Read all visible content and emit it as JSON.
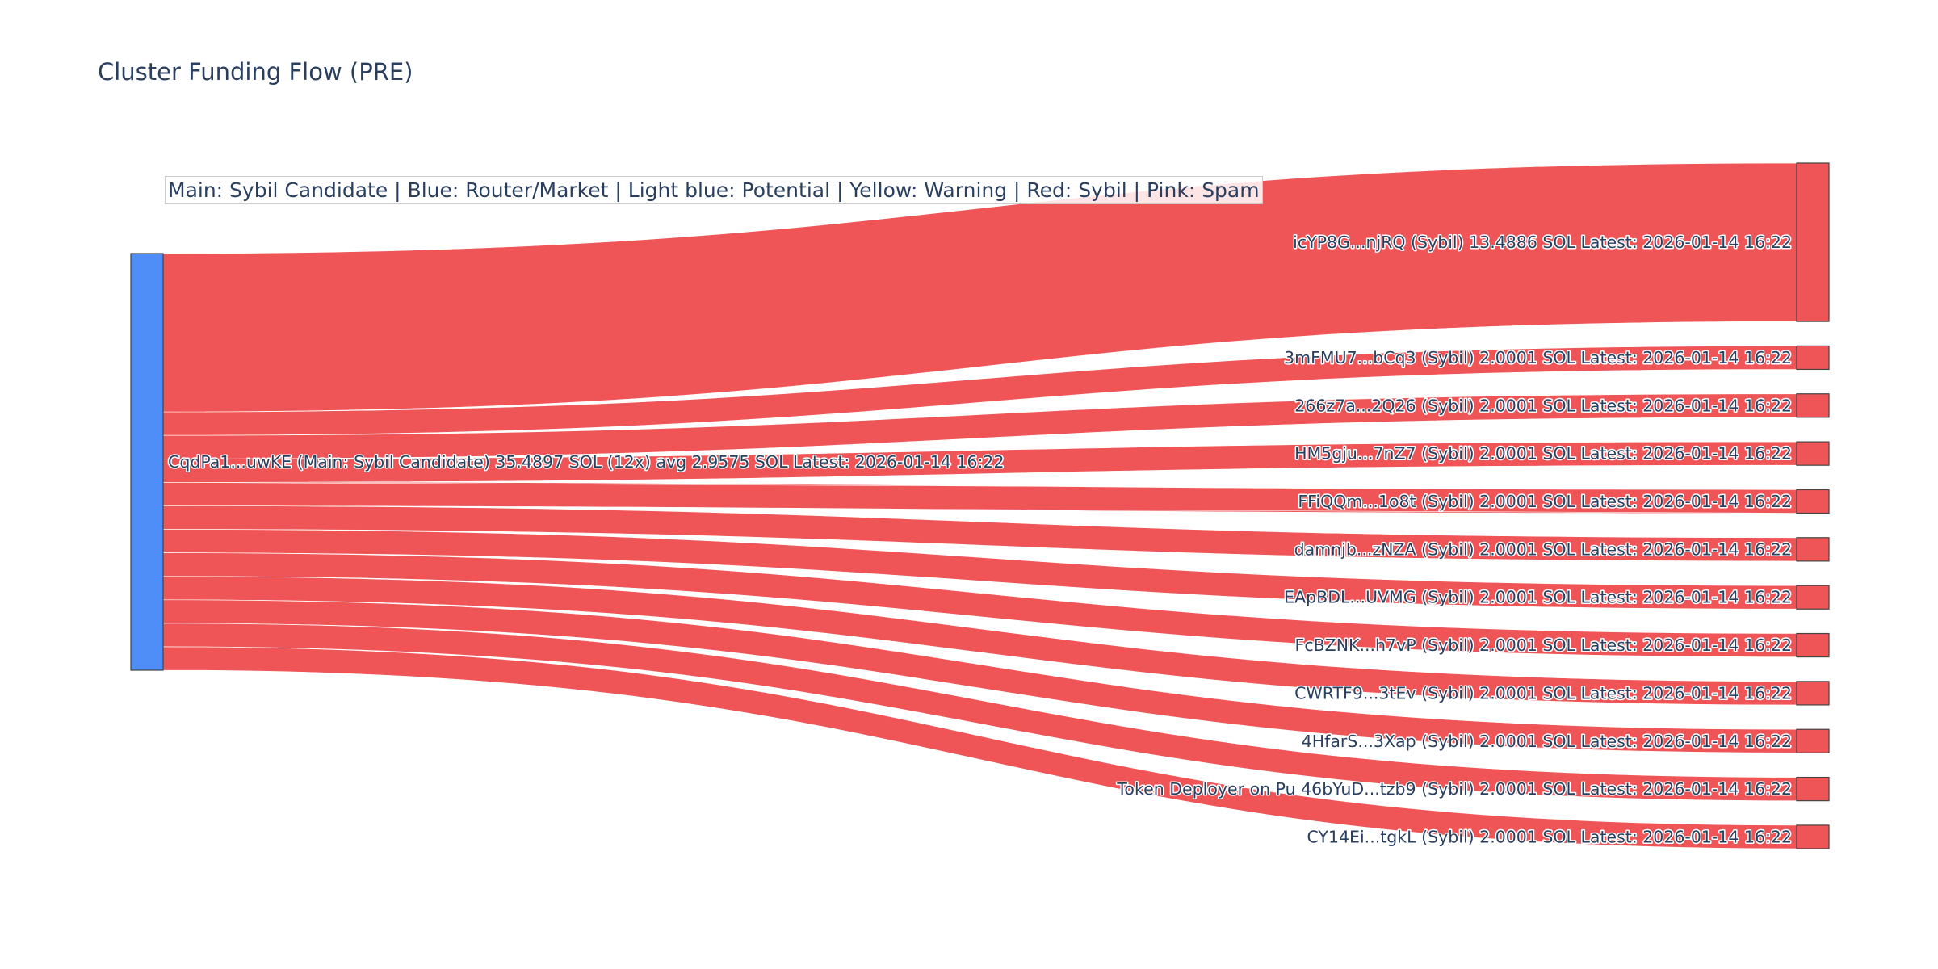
{
  "title": "Cluster Funding Flow (PRE)",
  "legend_note": "Main: Sybil Candidate  |  Blue: Router/Market | Light blue: Potential | Yellow: Warning | Red: Sybil | Pink: Spam",
  "colors": {
    "source_node": "#4f8ef7",
    "sybil_node": "#ef5557",
    "link": "#ef5557",
    "text": "#2a3f5f"
  },
  "chart_data": {
    "type": "sankey",
    "source": {
      "label": "CqdPa1...uwKE (Main: Sybil Candidate) 35.4897 SOL (12x) avg 2.9575 SOL Latest: 2026-01-14 16:22",
      "value": 35.4897
    },
    "targets": [
      {
        "label": "icYP8G...njRQ (Sybil) 13.4886 SOL Latest: 2026-01-14 16:22",
        "value": 13.4886
      },
      {
        "label": "3mFMU7...bCq3 (Sybil) 2.0001 SOL Latest: 2026-01-14 16:22",
        "value": 2.0001
      },
      {
        "label": "266z7a...2Q26 (Sybil) 2.0001 SOL Latest: 2026-01-14 16:22",
        "value": 2.0001
      },
      {
        "label": "HM5gju...7nZ7 (Sybil) 2.0001 SOL Latest: 2026-01-14 16:22",
        "value": 2.0001
      },
      {
        "label": "FFiQQm...1o8t (Sybil) 2.0001 SOL Latest: 2026-01-14 16:22",
        "value": 2.0001
      },
      {
        "label": "damnjb...zNZA (Sybil) 2.0001 SOL Latest: 2026-01-14 16:22",
        "value": 2.0001
      },
      {
        "label": "EApBDL...UVMG (Sybil) 2.0001 SOL Latest: 2026-01-14 16:22",
        "value": 2.0001
      },
      {
        "label": "FcBZNK...h7vP (Sybil) 2.0001 SOL Latest: 2026-01-14 16:22",
        "value": 2.0001
      },
      {
        "label": "CWRTF9...3tEv (Sybil) 2.0001 SOL Latest: 2026-01-14 16:22",
        "value": 2.0001
      },
      {
        "label": "4HfarS...3Xap (Sybil) 2.0001 SOL Latest: 2026-01-14 16:22",
        "value": 2.0001
      },
      {
        "label": "Token Deployer on Pu 46bYuD...tzb9 (Sybil) 2.0001 SOL Latest: 2026-01-14 16:22",
        "value": 2.0001
      },
      {
        "label": "CY14Ei...tgkL (Sybil) 2.0001 SOL Latest: 2026-01-14 16:22",
        "value": 2.0001
      }
    ]
  }
}
